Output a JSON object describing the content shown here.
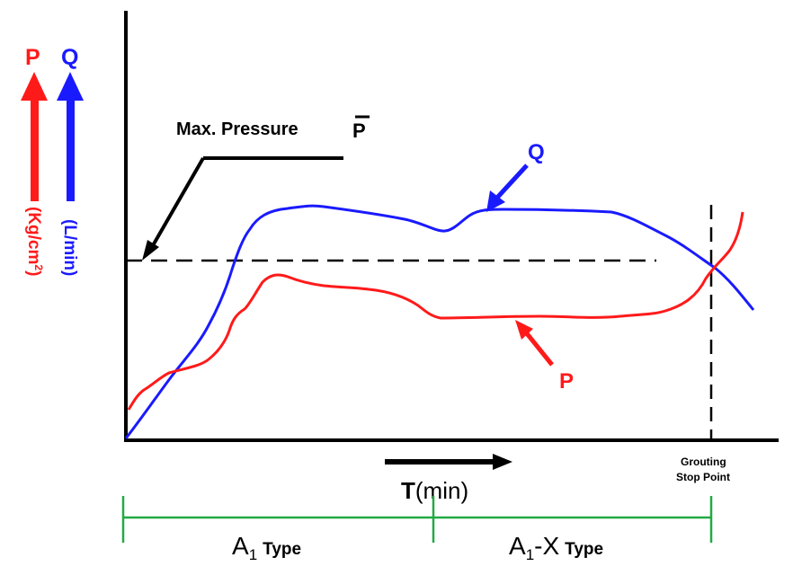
{
  "colors": {
    "pressure": "#ff1a1a",
    "flow": "#1a1aff",
    "axis": "#000000",
    "phase": "#22aa44"
  },
  "axis_labels": {
    "p_symbol": "P",
    "q_symbol": "Q",
    "p_unit_main": "(Kg/cm",
    "p_unit_sup": "2",
    "p_unit_end": ")",
    "q_unit": "(L/min)",
    "time_bold": "T",
    "time_rest": "(min)"
  },
  "annotations": {
    "max_pressure": "Max. Pressure",
    "max_pressure_symbol": "P",
    "curve_q": "Q",
    "curve_p": "P",
    "stop_line1": "Grouting",
    "stop_line2": "Stop Point"
  },
  "phases": [
    {
      "main": "A",
      "sub": "1",
      "tail": "",
      "suffix": "Type"
    },
    {
      "main": "A",
      "sub": "1",
      "tail": "-X",
      "suffix": "Type"
    }
  ]
}
